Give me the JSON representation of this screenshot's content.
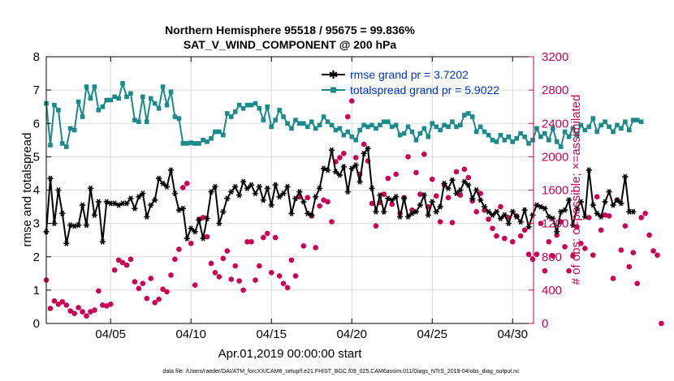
{
  "colors": {
    "rmse": "#000000",
    "spread": "#1a8a8a",
    "obs": "#cc0055",
    "legend_text": "#0033cc",
    "axes": "#000000"
  },
  "chart_data": {
    "type": "line",
    "title": "Northern Hemisphere 95518 / 95675 = 99.836%",
    "subtitle": "SAT_V_WIND_COMPONENT @ 200 hPa",
    "xlabel": "Apr.01,2019 00:00:00 start",
    "ylabel_left": "rmse and totalspread",
    "ylabel_right": "# of obs: o=possible; ×=assimilated",
    "footer": "data file: /Users/raeder/DAI/ATM_forcXX/CAM6_setup/f.e21.FHIST_BGC.f09_025.CAM6assim.011/Diags_NTrS_2019-04/obs_diag_output.nc",
    "xlim": [
      1,
      31.3
    ],
    "ylim_left": [
      0,
      8
    ],
    "ylim_right": [
      0,
      3200
    ],
    "x_tick_values": [
      5,
      10,
      15,
      20,
      25,
      30
    ],
    "x_tick_labels": [
      "04/05",
      "04/10",
      "04/15",
      "04/20",
      "04/25",
      "04/30"
    ],
    "y_left_ticks": [
      "0",
      "1",
      "2",
      "3",
      "4",
      "5",
      "6",
      "7",
      "8"
    ],
    "y_right_ticks": [
      "0",
      "400",
      "800",
      "1200",
      "1600",
      "2000",
      "2400",
      "2800",
      "3200"
    ],
    "x_start": 1.0,
    "x_step": 0.25,
    "series": [
      {
        "name": "rmse",
        "legend": "rmse grand pr = 3.7202",
        "axis": "left",
        "values": [
          2.75,
          4.35,
          3.0,
          4.0,
          3.3,
          2.4,
          2.95,
          2.92,
          2.95,
          3.55,
          2.95,
          4.05,
          3.25,
          3.65,
          2.45,
          3.65,
          3.6,
          3.6,
          3.55,
          3.6,
          3.6,
          3.75,
          3.45,
          3.8,
          3.9,
          3.2,
          3.55,
          3.7,
          4.35,
          4.2,
          4.1,
          4.6,
          3.9,
          3.4,
          3.45,
          2.55,
          2.85,
          2.75,
          3.1,
          2.55,
          3.15,
          3.95,
          4.1,
          3.0,
          3.35,
          3.75,
          3.95,
          4.1,
          3.85,
          4.25,
          4.05,
          4.15,
          3.9,
          4.1,
          3.7,
          4.05,
          3.55,
          4.15,
          3.8,
          3.9,
          4.1,
          3.3,
          3.75,
          3.95,
          3.65,
          3.3,
          3.25,
          3.8,
          4.05,
          4.65,
          4.6,
          5.2,
          4.55,
          4.45,
          4.7,
          3.95,
          4.65,
          4.75,
          4.25,
          5.1,
          5.25,
          4.05,
          3.35,
          3.85,
          3.35,
          3.75,
          3.7,
          3.8,
          3.2,
          3.75,
          3.2,
          3.3,
          3.35,
          3.55,
          3.85,
          3.25,
          3.65,
          3.35,
          3.5,
          4.2,
          4.05,
          4.3,
          3.9,
          4.0,
          4.25,
          4.15,
          3.75,
          4.0,
          3.7,
          3.5,
          3.35,
          3.25,
          3.35,
          3.15,
          3.25,
          3.0,
          3.35,
          3.2,
          3.05,
          3.4,
          2.9,
          3.25,
          3.55,
          3.5,
          3.45,
          3.2,
          3.15,
          2.75,
          3.35,
          3.4,
          3.7,
          2.95,
          3.45,
          3.65,
          3.2,
          4.6,
          3.55,
          3.3,
          3.2,
          3.65,
          3.95,
          3.55,
          3.7,
          3.6,
          4.4,
          3.35,
          3.35
        ]
      },
      {
        "name": "totalspread",
        "legend": "totalspread grand pr = 5.9022",
        "axis": "left",
        "values": [
          6.6,
          5.35,
          6.55,
          6.4,
          5.4,
          5.3,
          5.85,
          5.8,
          6.65,
          6.2,
          7.1,
          6.75,
          7.1,
          6.4,
          6.5,
          6.7,
          6.7,
          6.8,
          6.75,
          7.2,
          6.8,
          6.9,
          6.1,
          6.05,
          6.8,
          6.05,
          6.75,
          6.6,
          6.45,
          7.1,
          6.55,
          6.95,
          6.2,
          6.15,
          5.4,
          5.4,
          5.42,
          5.4,
          5.4,
          5.5,
          5.45,
          5.55,
          5.75,
          5.75,
          5.65,
          6.3,
          6.2,
          6.35,
          6.55,
          6.45,
          6.55,
          6.55,
          6.6,
          6.45,
          6.1,
          6.5,
          5.9,
          6.1,
          6.4,
          6.2,
          6.0,
          5.85,
          6.1,
          6.0,
          6.0,
          5.9,
          6.05,
          5.85,
          5.95,
          6.2,
          6.05,
          5.95,
          5.8,
          5.85,
          5.65,
          5.75,
          5.6,
          5.5,
          5.8,
          5.95,
          5.9,
          5.95,
          5.85,
          5.95,
          6.05,
          6.05,
          5.9,
          5.95,
          5.65,
          5.7,
          5.9,
          5.75,
          5.5,
          5.7,
          5.85,
          5.6,
          6.0,
          5.9,
          5.8,
          5.95,
          5.9,
          6.05,
          5.9,
          5.95,
          6.25,
          6.3,
          6.2,
          5.75,
          5.9,
          5.75,
          5.65,
          5.5,
          5.45,
          5.65,
          5.5,
          5.6,
          5.45,
          5.55,
          5.7,
          5.6,
          5.4,
          5.5,
          5.85,
          5.6,
          5.7,
          5.5,
          5.85,
          5.45,
          5.3,
          5.75,
          5.6,
          5.85,
          5.65,
          5.95,
          5.8,
          5.9,
          6.15,
          5.75,
          5.95,
          6.05,
          5.9,
          5.75,
          5.95,
          5.85,
          6.05,
          5.8,
          6.1,
          6.1,
          6.05
        ]
      },
      {
        "name": "observations",
        "axis": "right",
        "values": [
          520,
          180,
          270,
          230,
          260,
          220,
          150,
          120,
          190,
          140,
          90,
          140,
          160,
          390,
          220,
          210,
          230,
          640,
          760,
          730,
          700,
          770,
          500,
          420,
          480,
          300,
          540,
          250,
          290,
          410,
          380,
          580,
          770,
          890,
          1630,
          1680,
          960,
          460,
          1250,
          1270,
          1040,
          720,
          610,
          560,
          780,
          870,
          530,
          690,
          510,
          400,
          980,
          980,
          520,
          690,
          1030,
          1080,
          610,
          1030,
          570,
          480,
          430,
          760,
          570,
          1520,
          930,
          1510,
          1290,
          910,
          1410,
          1480,
          1460,
          1220,
          1940,
          1990,
          2040,
          2480,
          2670,
          1990,
          1790,
          2150,
          1950,
          1440,
          1170,
          1450,
          1550,
          1740,
          1430,
          1790,
          1320,
          1510,
          2000,
          1360,
          1810,
          1550,
          2030,
          1400,
          1730,
          1530,
          1220,
          1660,
          1510,
          1210,
          1820,
          1540,
          1850,
          1750,
          1470,
          1340,
          1560,
          1360,
          1250,
          1140,
          1050,
          1400,
          1020,
          1270,
          980,
          1290,
          1050,
          1120,
          830,
          770,
          830,
          1200,
          630,
          980,
          810,
          1060,
          1220,
          920,
          630,
          810,
          1160,
          960,
          900,
          1270,
          820,
          1520,
          1120,
          1300,
          1290,
          540,
          1480,
          880,
          1170,
          680,
          850,
          480,
          1270,
          1320,
          1060,
          870,
          820,
          0
        ]
      }
    ]
  }
}
